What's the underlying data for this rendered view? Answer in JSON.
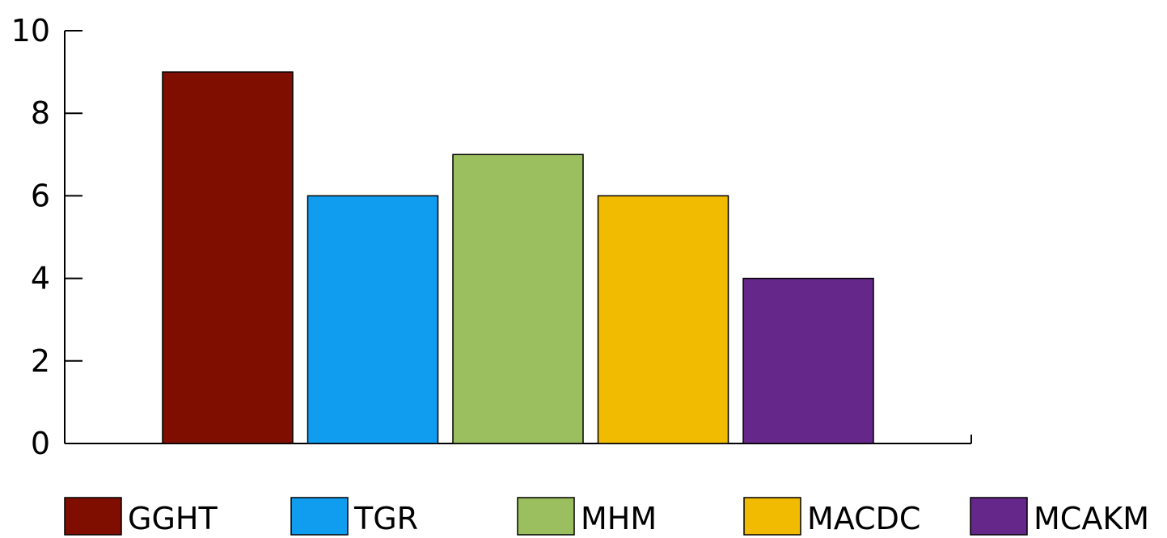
{
  "chart_data": {
    "type": "bar",
    "title": "",
    "xlabel": "",
    "ylabel": "",
    "categories": [
      "GGHT",
      "TGR",
      "MHM",
      "MACDC",
      "MCAKM"
    ],
    "values": [
      9,
      6,
      7,
      6,
      4
    ],
    "colors": [
      "#800E00",
      "#109DF0",
      "#9BBE5E",
      "#F0BB00",
      "#66278A"
    ],
    "ylim": [
      0,
      10
    ],
    "yticks": [
      0,
      2,
      4,
      6,
      8,
      10
    ],
    "grid": false,
    "legend": {
      "placement": "bottom",
      "entries": [
        "GGHT",
        "TGR",
        "MHM",
        "MACDC",
        "MCAKM"
      ]
    }
  }
}
